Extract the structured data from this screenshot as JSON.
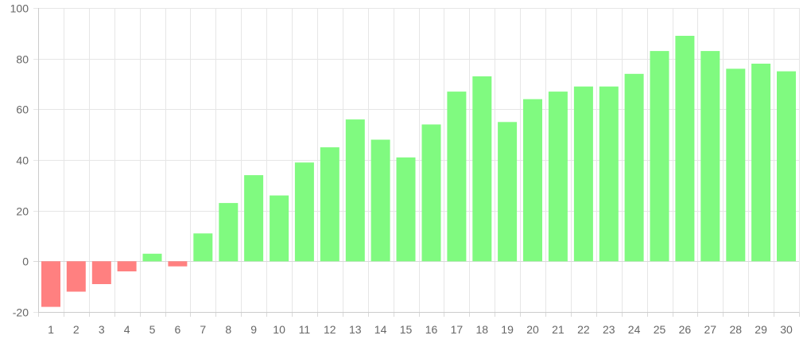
{
  "chart_data": {
    "type": "bar",
    "title": "",
    "xlabel": "",
    "ylabel": "",
    "categories": [
      "1",
      "2",
      "3",
      "4",
      "5",
      "6",
      "7",
      "8",
      "9",
      "10",
      "11",
      "12",
      "13",
      "14",
      "15",
      "16",
      "17",
      "18",
      "19",
      "20",
      "21",
      "22",
      "23",
      "24",
      "25",
      "26",
      "27",
      "28",
      "29",
      "30"
    ],
    "values": [
      -18,
      -12,
      -9,
      -4,
      3,
      -2,
      11,
      23,
      34,
      26,
      39,
      45,
      56,
      48,
      41,
      54,
      67,
      73,
      55,
      64,
      67,
      69,
      69,
      74,
      83,
      89,
      83,
      76,
      78,
      75
    ],
    "ylim": [
      -20,
      100
    ],
    "yticks": [
      "100",
      "80",
      "60",
      "40",
      "20",
      "0",
      "-20"
    ],
    "grid": true,
    "legend": "none",
    "colors": {
      "positive": "#80fa80",
      "negative": "#ff8080"
    }
  }
}
